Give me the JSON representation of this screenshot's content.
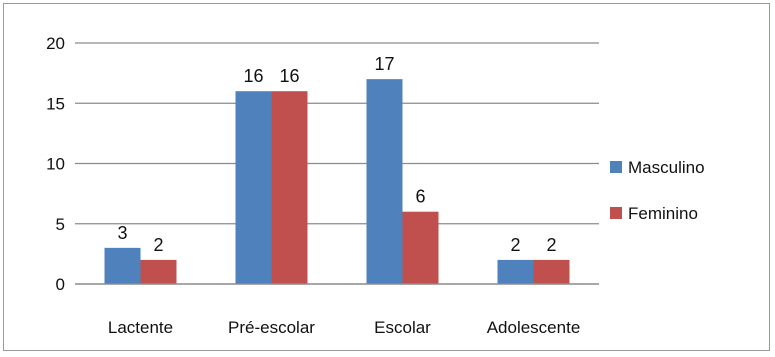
{
  "chart_data": {
    "type": "bar",
    "categories": [
      "Lactente",
      "Pré-escolar",
      "Escolar",
      "Adolescente"
    ],
    "series": [
      {
        "name": "Masculino",
        "values": [
          3,
          16,
          17,
          2
        ],
        "color": "#4f81bd"
      },
      {
        "name": "Feminino",
        "values": [
          2,
          16,
          6,
          2
        ],
        "color": "#c0504d"
      }
    ],
    "ylim": [
      0,
      20
    ],
    "yticks": [
      "0",
      "5",
      "10",
      "15",
      "20"
    ],
    "grid": true,
    "legend": "right",
    "data_labels": true
  }
}
